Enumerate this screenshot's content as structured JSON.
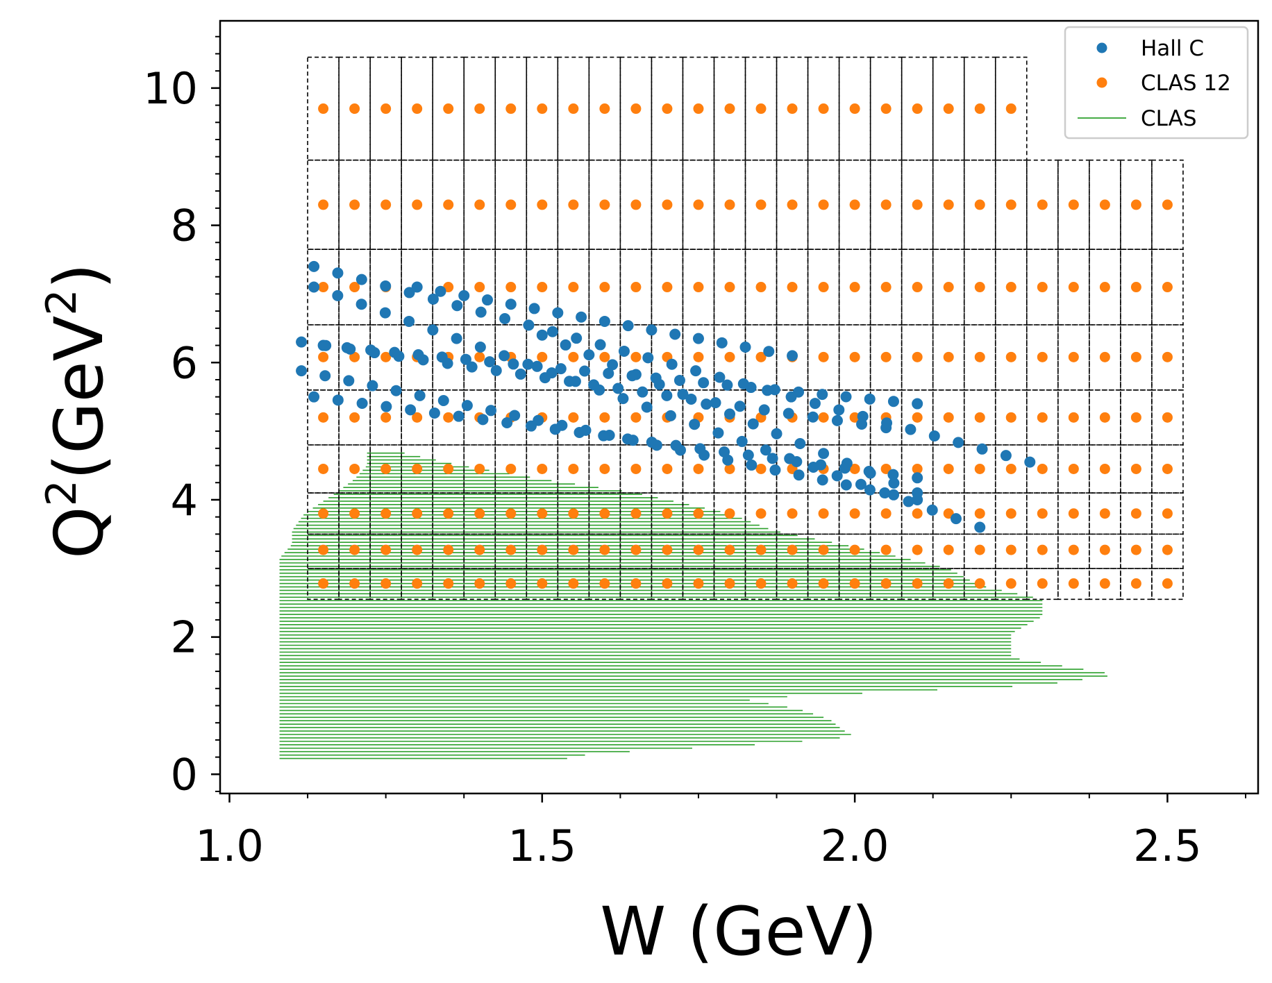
{
  "chart_data": {
    "type": "scatter",
    "xlabel": "W (GeV)",
    "ylabel_base": "Q",
    "ylabel_sup": "2",
    "ylabel_paren_open": "(GeV",
    "ylabel_unit_sup": "2",
    "ylabel_paren_close": ")",
    "xlim": [
      0.985,
      2.645
    ],
    "ylim": [
      -0.28,
      10.98
    ],
    "x_ticks": [
      1.0,
      1.5,
      2.0,
      2.5
    ],
    "x_tick_labels": [
      "1.0",
      "1.5",
      "2.0",
      "2.5"
    ],
    "y_ticks": [
      0,
      2,
      4,
      6,
      8,
      10
    ],
    "y_tick_labels": [
      "0",
      "2",
      "4",
      "6",
      "8",
      "10"
    ],
    "x_minor_step": 0.125,
    "y_minor_step": 0.25,
    "grid": false,
    "legend": {
      "position": "top-right",
      "entries": [
        {
          "label": "Hall C",
          "marker": "dot",
          "color": "#1f77b4"
        },
        {
          "label": "CLAS 12",
          "marker": "dot",
          "color": "#ff7f0e"
        },
        {
          "label": "CLAS",
          "marker": "line",
          "color": "#2ca02c"
        }
      ]
    },
    "series": [
      {
        "name": "CLAS 12",
        "color": "#ff7f0e",
        "marker": "dot",
        "bins": {
          "x_start": 1.125,
          "x_width": 0.05,
          "rows": [
            {
              "q2_low": 2.55,
              "q2_high": 3.0,
              "q2_center": 2.78,
              "n_bins": 28
            },
            {
              "q2_low": 3.0,
              "q2_high": 3.5,
              "q2_center": 3.27,
              "n_bins": 28
            },
            {
              "q2_low": 3.5,
              "q2_high": 4.1,
              "q2_center": 3.8,
              "n_bins": 28
            },
            {
              "q2_low": 4.1,
              "q2_high": 4.8,
              "q2_center": 4.45,
              "n_bins": 28
            },
            {
              "q2_low": 4.8,
              "q2_high": 5.6,
              "q2_center": 5.2,
              "n_bins": 28
            },
            {
              "q2_low": 5.6,
              "q2_high": 6.55,
              "q2_center": 6.08,
              "n_bins": 28
            },
            {
              "q2_low": 6.55,
              "q2_high": 7.65,
              "q2_center": 7.1,
              "n_bins": 28
            },
            {
              "q2_low": 7.65,
              "q2_high": 8.95,
              "q2_center": 8.3,
              "n_bins": 28
            },
            {
              "q2_low": 8.95,
              "q2_high": 10.45,
              "q2_center": 9.7,
              "n_bins": 23
            }
          ]
        }
      },
      {
        "name": "Hall C",
        "color": "#1f77b4",
        "marker": "dot",
        "lines": [
          {
            "w_start": 1.115,
            "w_end": 2.1,
            "q2_start": 5.88,
            "q2_end": 4.0,
            "n": 27
          },
          {
            "w_start": 1.115,
            "w_end": 2.05,
            "q2_start": 6.3,
            "q2_end": 5.05,
            "n": 25
          },
          {
            "w_start": 1.135,
            "w_end": 2.1,
            "q2_start": 5.5,
            "q2_end": 4.32,
            "n": 26
          },
          {
            "w_start": 1.15,
            "w_end": 2.1,
            "q2_start": 6.25,
            "q2_end": 5.4,
            "n": 26
          },
          {
            "w_start": 1.135,
            "w_end": 2.2,
            "q2_start": 7.1,
            "q2_end": 3.6,
            "n": 29
          },
          {
            "w_start": 1.135,
            "w_end": 2.28,
            "q2_start": 7.4,
            "q2_end": 4.55,
            "n": 31
          },
          {
            "w_start": 1.3,
            "w_end": 1.9,
            "q2_start": 7.1,
            "q2_end": 6.1,
            "n": 17
          },
          {
            "w_start": 1.5,
            "w_end": 2.1,
            "q2_start": 6.4,
            "q2_end": 4.1,
            "n": 17
          }
        ]
      },
      {
        "name": "CLAS",
        "color": "#2ca02c",
        "marker": "line",
        "q2_step": 0.05,
        "envelope": [
          {
            "q2": 0.23,
            "w_min": 1.08,
            "w_max": 1.54
          },
          {
            "q2": 0.3,
            "w_min": 1.08,
            "w_max": 1.58
          },
          {
            "q2": 0.45,
            "w_min": 1.08,
            "w_max": 1.88
          },
          {
            "q2": 0.55,
            "w_min": 1.08,
            "w_max": 2.0
          },
          {
            "q2": 0.65,
            "w_min": 1.08,
            "w_max": 1.98
          },
          {
            "q2": 0.8,
            "w_min": 1.08,
            "w_max": 1.96
          },
          {
            "q2": 0.95,
            "w_min": 1.08,
            "w_max": 1.91
          },
          {
            "q2": 1.1,
            "w_min": 1.08,
            "w_max": 1.82
          },
          {
            "q2": 1.3,
            "w_min": 1.08,
            "w_max": 2.3
          },
          {
            "q2": 1.45,
            "w_min": 1.08,
            "w_max": 2.42
          },
          {
            "q2": 1.7,
            "w_min": 1.08,
            "w_max": 2.25
          },
          {
            "q2": 2.05,
            "w_min": 1.08,
            "w_max": 2.25
          },
          {
            "q2": 2.3,
            "w_min": 1.08,
            "w_max": 2.3
          },
          {
            "q2": 2.55,
            "w_min": 1.08,
            "w_max": 2.3
          },
          {
            "q2": 2.75,
            "w_min": 1.08,
            "w_max": 2.2
          },
          {
            "q2": 3.0,
            "w_min": 1.08,
            "w_max": 2.15
          },
          {
            "q2": 3.15,
            "w_min": 1.08,
            "w_max": 2.08
          },
          {
            "q2": 3.35,
            "w_min": 1.1,
            "w_max": 1.98
          },
          {
            "q2": 3.55,
            "w_min": 1.1,
            "w_max": 1.87
          },
          {
            "q2": 3.8,
            "w_min": 1.12,
            "w_max": 1.8
          },
          {
            "q2": 4.1,
            "w_min": 1.17,
            "w_max": 1.65
          },
          {
            "q2": 4.3,
            "w_min": 1.2,
            "w_max": 1.5
          },
          {
            "q2": 4.5,
            "w_min": 1.22,
            "w_max": 1.37
          },
          {
            "q2": 4.7,
            "w_min": 1.22,
            "w_max": 1.27
          }
        ]
      }
    ]
  }
}
